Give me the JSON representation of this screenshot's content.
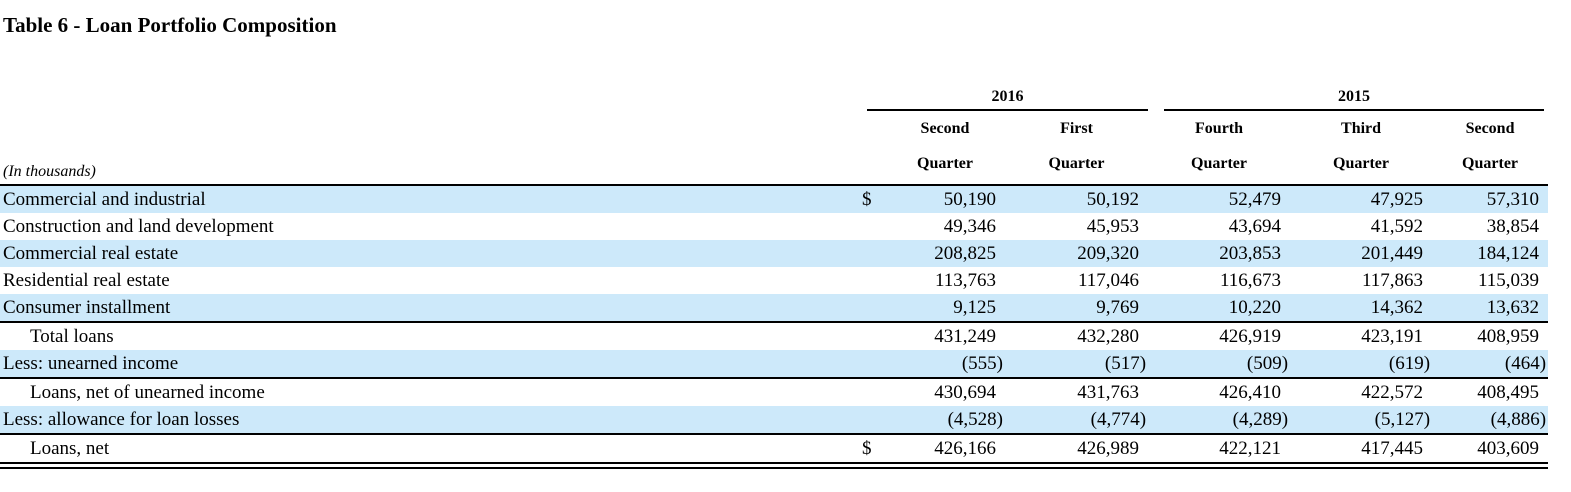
{
  "page": {
    "title": "Table 6 - Loan Portfolio Composition",
    "units_note": "(In thousands)"
  },
  "colors": {
    "row_highlight": "#cde9fa",
    "rule": "#000000",
    "text": "#000000"
  },
  "table": {
    "year_groups": [
      {
        "label": "2016"
      },
      {
        "label": "2015"
      }
    ],
    "columns": [
      {
        "group": "2016",
        "line1": "Second",
        "line2": "Quarter"
      },
      {
        "group": "2016",
        "line1": "First",
        "line2": "Quarter"
      },
      {
        "group": "2015",
        "line1": "Fourth",
        "line2": "Quarter"
      },
      {
        "group": "2015",
        "line1": "Third",
        "line2": "Quarter"
      },
      {
        "group": "2015",
        "line1": "Second",
        "line2": "Quarter"
      }
    ],
    "rows": [
      {
        "label": "Commercial and industrial",
        "currency": "$",
        "indent": false,
        "values": [
          "50,190",
          "50,192",
          "52,479",
          "47,925",
          "57,310"
        ]
      },
      {
        "label": "Construction and land development",
        "currency": "",
        "indent": false,
        "values": [
          "49,346",
          "45,953",
          "43,694",
          "41,592",
          "38,854"
        ]
      },
      {
        "label": "Commercial real estate",
        "currency": "",
        "indent": false,
        "values": [
          "208,825",
          "209,320",
          "203,853",
          "201,449",
          "184,124"
        ]
      },
      {
        "label": "Residential real estate",
        "currency": "",
        "indent": false,
        "values": [
          "113,763",
          "117,046",
          "116,673",
          "117,863",
          "115,039"
        ]
      },
      {
        "label": "Consumer installment",
        "currency": "",
        "indent": false,
        "values": [
          "9,125",
          "9,769",
          "10,220",
          "14,362",
          "13,632"
        ]
      },
      {
        "label": "Total loans",
        "currency": "",
        "indent": true,
        "values": [
          "431,249",
          "432,280",
          "426,919",
          "423,191",
          "408,959"
        ]
      },
      {
        "label": "Less: unearned income",
        "currency": "",
        "indent": false,
        "values": [
          "(555)",
          "(517)",
          "(509)",
          "(619)",
          "(464)"
        ]
      },
      {
        "label": "Loans, net of unearned income",
        "currency": "",
        "indent": true,
        "values": [
          "430,694",
          "431,763",
          "426,410",
          "422,572",
          "408,495"
        ]
      },
      {
        "label": "Less: allowance for loan losses",
        "currency": "",
        "indent": false,
        "values": [
          "(4,528)",
          "(4,774)",
          "(4,289)",
          "(5,127)",
          "(4,886)"
        ]
      },
      {
        "label": "Loans, net",
        "currency": "$",
        "indent": true,
        "values": [
          "426,166",
          "426,989",
          "422,121",
          "417,445",
          "403,609"
        ]
      }
    ]
  }
}
